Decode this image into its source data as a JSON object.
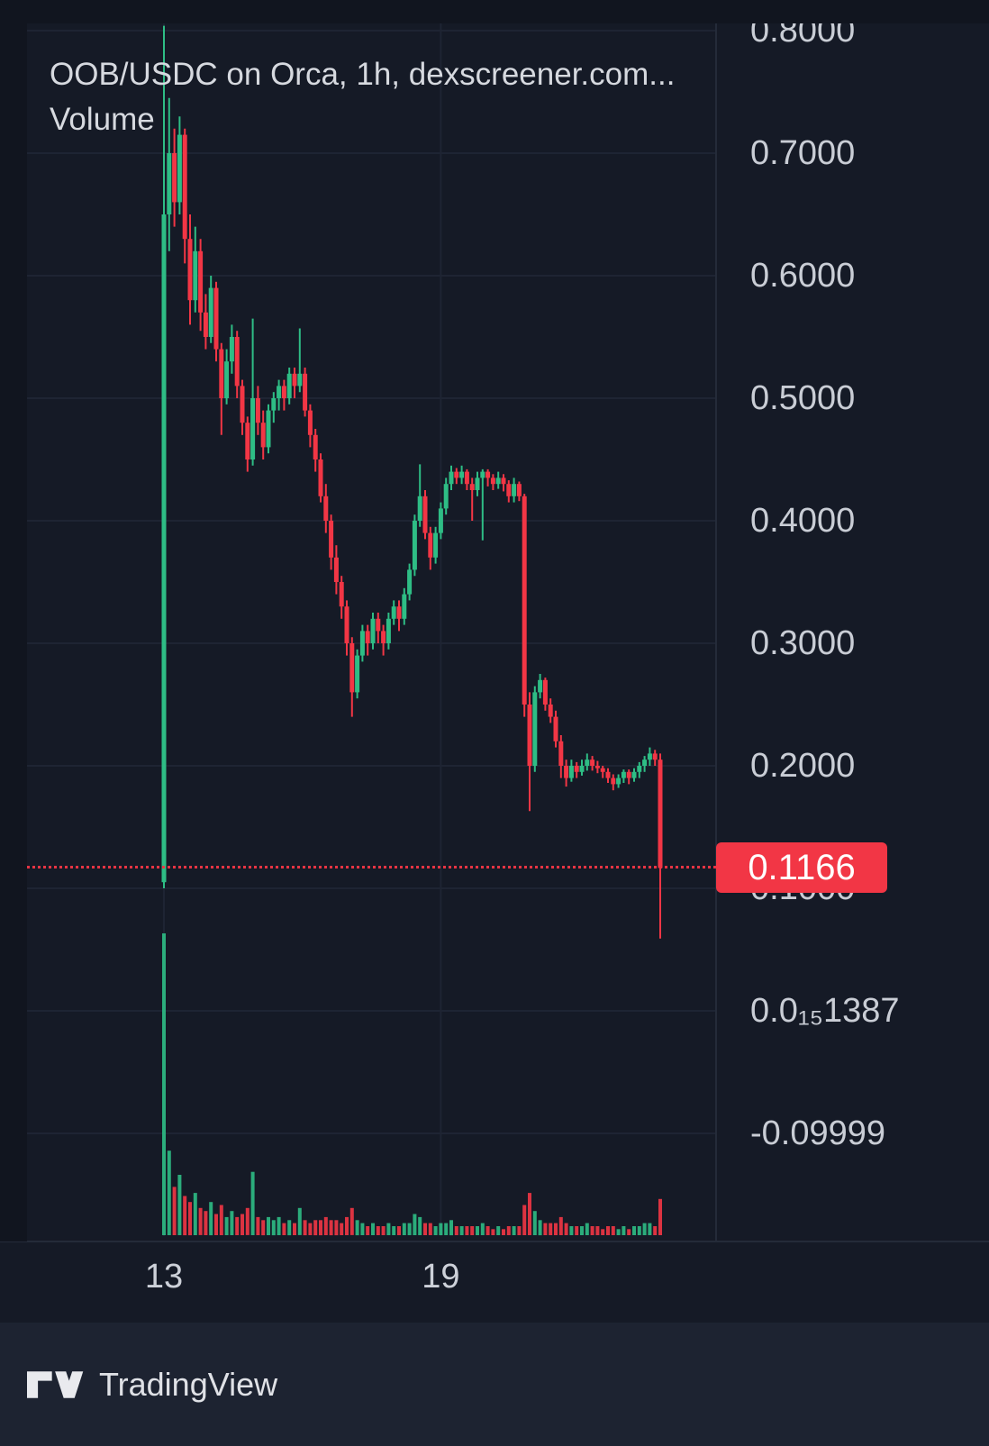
{
  "title": {
    "line1": "OOB/USDC on Orca, 1h, dexscreener.com...",
    "line2": "Volume"
  },
  "price_scale": {
    "labels": [
      {
        "text": "0.8000",
        "value": 0.8
      },
      {
        "text": "0.7000",
        "value": 0.7
      },
      {
        "text": "0.6000",
        "value": 0.6
      },
      {
        "text": "0.5000",
        "value": 0.5
      },
      {
        "text": "0.4000",
        "value": 0.4
      },
      {
        "text": "0.3000",
        "value": 0.3
      },
      {
        "text": "0.2000",
        "value": 0.2
      },
      {
        "text": "0.1000",
        "value": 0.1
      },
      {
        "text": "0.0₁₅1387",
        "value": 0.0
      },
      {
        "text": "-0.09999",
        "value": -0.09999
      }
    ],
    "current_price": 0.1166,
    "current_price_label": "0.1166"
  },
  "time_scale": {
    "ticks": [
      {
        "label": "13",
        "index": 0
      },
      {
        "label": "19",
        "index": 53
      }
    ]
  },
  "footer": {
    "brand": "TradingView"
  },
  "colors": {
    "background": "#151a26",
    "gutter": "#11151f",
    "grid": "#1e2433",
    "separator": "#242b39",
    "up": "#2ebd85",
    "down": "#f23645",
    "axis_text": "#c9cdd5",
    "title_text": "#d6d9df",
    "badge_bg": "#f23645",
    "badge_text": "#ffffff",
    "footer_bg": "#1d2331"
  },
  "chart_data": {
    "type": "candlestick",
    "symbol": "OOB/USDC",
    "exchange": "Orca",
    "interval": "1h",
    "source": "dexscreener.com",
    "title": "OOB/USDC on Orca, 1h, dexscreener.com...",
    "ylim": [
      -0.184,
      0.805
    ],
    "grid": true,
    "legend_position": "top-left",
    "current_price": 0.1166,
    "x_ticks": [
      {
        "label": "13",
        "index": 0
      },
      {
        "label": "19",
        "index": 53
      }
    ],
    "candles": [
      [
        0.105,
        0.804,
        0.1,
        0.65
      ],
      [
        0.65,
        0.745,
        0.62,
        0.7
      ],
      [
        0.7,
        0.72,
        0.64,
        0.66
      ],
      [
        0.66,
        0.73,
        0.65,
        0.715
      ],
      [
        0.715,
        0.72,
        0.61,
        0.63
      ],
      [
        0.63,
        0.65,
        0.56,
        0.58
      ],
      [
        0.58,
        0.64,
        0.57,
        0.62
      ],
      [
        0.62,
        0.63,
        0.555,
        0.57
      ],
      [
        0.57,
        0.585,
        0.54,
        0.55
      ],
      [
        0.55,
        0.6,
        0.545,
        0.59
      ],
      [
        0.59,
        0.595,
        0.53,
        0.54
      ],
      [
        0.54,
        0.545,
        0.47,
        0.5
      ],
      [
        0.5,
        0.54,
        0.495,
        0.53
      ],
      [
        0.53,
        0.56,
        0.52,
        0.55
      ],
      [
        0.55,
        0.555,
        0.5,
        0.51
      ],
      [
        0.51,
        0.515,
        0.47,
        0.48
      ],
      [
        0.48,
        0.485,
        0.44,
        0.45
      ],
      [
        0.45,
        0.565,
        0.445,
        0.5
      ],
      [
        0.5,
        0.51,
        0.47,
        0.48
      ],
      [
        0.48,
        0.49,
        0.45,
        0.46
      ],
      [
        0.46,
        0.495,
        0.455,
        0.49
      ],
      [
        0.49,
        0.505,
        0.48,
        0.5
      ],
      [
        0.5,
        0.515,
        0.49,
        0.51
      ],
      [
        0.51,
        0.515,
        0.49,
        0.5
      ],
      [
        0.5,
        0.525,
        0.495,
        0.52
      ],
      [
        0.52,
        0.525,
        0.5,
        0.51
      ],
      [
        0.51,
        0.557,
        0.505,
        0.52
      ],
      [
        0.52,
        0.525,
        0.485,
        0.49
      ],
      [
        0.49,
        0.495,
        0.46,
        0.47
      ],
      [
        0.47,
        0.475,
        0.44,
        0.45
      ],
      [
        0.45,
        0.455,
        0.415,
        0.42
      ],
      [
        0.42,
        0.43,
        0.39,
        0.4
      ],
      [
        0.4,
        0.405,
        0.36,
        0.37
      ],
      [
        0.37,
        0.38,
        0.34,
        0.35
      ],
      [
        0.35,
        0.355,
        0.32,
        0.33
      ],
      [
        0.33,
        0.335,
        0.29,
        0.3
      ],
      [
        0.3,
        0.305,
        0.24,
        0.26
      ],
      [
        0.26,
        0.295,
        0.255,
        0.29
      ],
      [
        0.29,
        0.315,
        0.285,
        0.31
      ],
      [
        0.31,
        0.315,
        0.29,
        0.3
      ],
      [
        0.3,
        0.325,
        0.295,
        0.32
      ],
      [
        0.32,
        0.325,
        0.3,
        0.31
      ],
      [
        0.31,
        0.315,
        0.29,
        0.3
      ],
      [
        0.3,
        0.325,
        0.295,
        0.32
      ],
      [
        0.32,
        0.335,
        0.315,
        0.33
      ],
      [
        0.33,
        0.335,
        0.31,
        0.32
      ],
      [
        0.32,
        0.345,
        0.315,
        0.34
      ],
      [
        0.34,
        0.365,
        0.335,
        0.36
      ],
      [
        0.36,
        0.405,
        0.355,
        0.4
      ],
      [
        0.4,
        0.446,
        0.395,
        0.42
      ],
      [
        0.42,
        0.425,
        0.385,
        0.39
      ],
      [
        0.39,
        0.395,
        0.36,
        0.37
      ],
      [
        0.37,
        0.395,
        0.365,
        0.39
      ],
      [
        0.39,
        0.415,
        0.385,
        0.41
      ],
      [
        0.41,
        0.435,
        0.405,
        0.43
      ],
      [
        0.43,
        0.445,
        0.425,
        0.44
      ],
      [
        0.44,
        0.443,
        0.43,
        0.435
      ],
      [
        0.435,
        0.445,
        0.43,
        0.44
      ],
      [
        0.44,
        0.442,
        0.425,
        0.43
      ],
      [
        0.43,
        0.435,
        0.4,
        0.425
      ],
      [
        0.425,
        0.44,
        0.42,
        0.435
      ],
      [
        0.435,
        0.442,
        0.384,
        0.44
      ],
      [
        0.44,
        0.442,
        0.428,
        0.435
      ],
      [
        0.435,
        0.438,
        0.425,
        0.43
      ],
      [
        0.43,
        0.44,
        0.426,
        0.435
      ],
      [
        0.435,
        0.438,
        0.424,
        0.43
      ],
      [
        0.43,
        0.433,
        0.415,
        0.42
      ],
      [
        0.42,
        0.435,
        0.415,
        0.43
      ],
      [
        0.43,
        0.432,
        0.416,
        0.42
      ],
      [
        0.42,
        0.422,
        0.24,
        0.25
      ],
      [
        0.25,
        0.26,
        0.163,
        0.2
      ],
      [
        0.2,
        0.265,
        0.195,
        0.26
      ],
      [
        0.26,
        0.275,
        0.255,
        0.27
      ],
      [
        0.27,
        0.272,
        0.245,
        0.25
      ],
      [
        0.25,
        0.255,
        0.235,
        0.24
      ],
      [
        0.24,
        0.245,
        0.215,
        0.22
      ],
      [
        0.22,
        0.225,
        0.19,
        0.2
      ],
      [
        0.2,
        0.205,
        0.183,
        0.19
      ],
      [
        0.19,
        0.205,
        0.187,
        0.2
      ],
      [
        0.2,
        0.203,
        0.19,
        0.195
      ],
      [
        0.195,
        0.205,
        0.192,
        0.2
      ],
      [
        0.2,
        0.21,
        0.196,
        0.205
      ],
      [
        0.205,
        0.208,
        0.196,
        0.2
      ],
      [
        0.2,
        0.204,
        0.194,
        0.198
      ],
      [
        0.198,
        0.2,
        0.19,
        0.195
      ],
      [
        0.195,
        0.198,
        0.186,
        0.19
      ],
      [
        0.19,
        0.193,
        0.18,
        0.185
      ],
      [
        0.185,
        0.193,
        0.182,
        0.19
      ],
      [
        0.19,
        0.197,
        0.186,
        0.195
      ],
      [
        0.195,
        0.197,
        0.185,
        0.19
      ],
      [
        0.19,
        0.198,
        0.187,
        0.195
      ],
      [
        0.195,
        0.203,
        0.19,
        0.2
      ],
      [
        0.2,
        0.208,
        0.195,
        0.205
      ],
      [
        0.205,
        0.215,
        0.2,
        0.21
      ],
      [
        0.21,
        0.213,
        0.2,
        0.205
      ],
      [
        0.205,
        0.21,
        0.059,
        0.1166
      ]
    ],
    "volume": [
      100,
      28,
      16,
      20,
      13,
      11,
      14,
      9,
      8,
      11,
      7,
      10,
      6,
      8,
      6,
      7,
      9,
      21,
      6,
      5,
      6,
      5,
      6,
      4,
      5,
      4,
      9,
      5,
      4,
      5,
      5,
      6,
      5,
      5,
      4,
      6,
      9,
      5,
      4,
      3,
      4,
      3,
      3,
      4,
      3,
      3,
      4,
      4,
      7,
      6,
      4,
      4,
      3,
      4,
      4,
      5,
      3,
      3,
      3,
      3,
      3,
      4,
      3,
      2,
      3,
      2,
      3,
      3,
      3,
      10,
      14,
      8,
      5,
      4,
      4,
      4,
      6,
      4,
      3,
      3,
      3,
      4,
      3,
      3,
      2,
      3,
      3,
      2,
      3,
      2,
      3,
      3,
      4,
      4,
      3,
      12
    ],
    "up_color": "#2ebd85",
    "down_color": "#f23645"
  }
}
